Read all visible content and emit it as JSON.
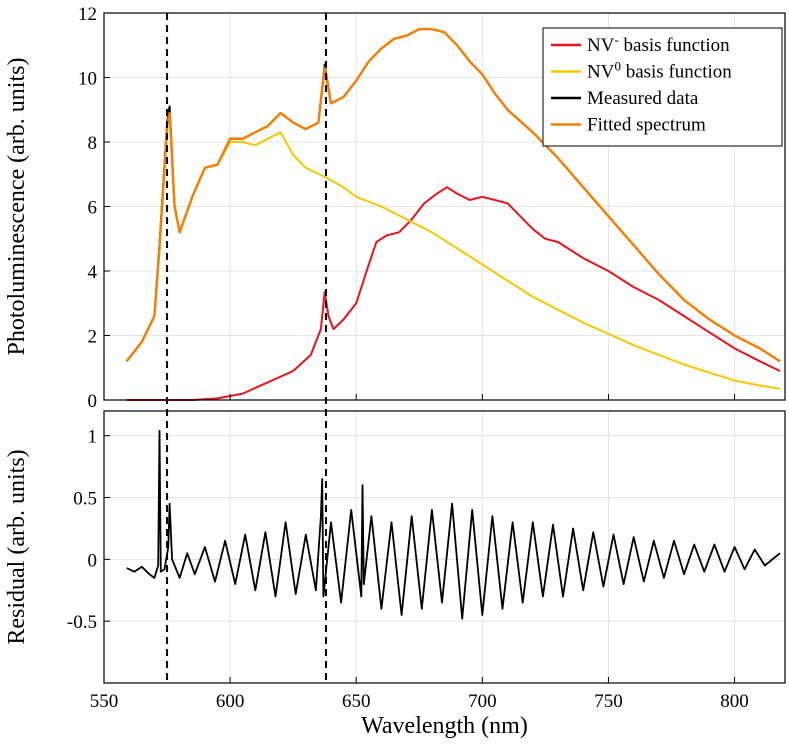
{
  "chart_data": [
    {
      "type": "line",
      "panel": "top",
      "xlabel": "",
      "ylabel": "Photoluminescence (arb. units)",
      "xlim": [
        550,
        820
      ],
      "ylim": [
        0,
        12
      ],
      "yticks": [
        0,
        2,
        4,
        6,
        8,
        10,
        12
      ],
      "grid": true,
      "legend_position": "top-right",
      "colors": {
        "nvm": "#e8141c",
        "nv0": "#f5c800",
        "measured": "#000000",
        "fitted": "#f77f00"
      },
      "legend": [
        {
          "key": "nvm",
          "base": "NV",
          "sup": "-",
          "rest": " basis function"
        },
        {
          "key": "nv0",
          "base": "NV",
          "sup": "0",
          "rest": " basis function"
        },
        {
          "key": "measured",
          "base": "Measured data",
          "sup": "",
          "rest": ""
        },
        {
          "key": "fitted",
          "base": "Fitted spectrum",
          "sup": "",
          "rest": ""
        }
      ],
      "series": [
        {
          "key": "nvm",
          "x": [
            559,
            565,
            575,
            585,
            595,
            605,
            615,
            625,
            632,
            636,
            637.5,
            639,
            641,
            645,
            650,
            655,
            658,
            662,
            667,
            672,
            677,
            682,
            686,
            690,
            695,
            700,
            705,
            710,
            715,
            720,
            725,
            730,
            740,
            750,
            760,
            770,
            780,
            790,
            800,
            810,
            818
          ],
          "y": [
            0.0,
            0.0,
            0.0,
            0.0,
            0.05,
            0.2,
            0.55,
            0.9,
            1.4,
            2.2,
            3.35,
            2.6,
            2.2,
            2.5,
            3.0,
            4.2,
            4.9,
            5.1,
            5.2,
            5.6,
            6.1,
            6.4,
            6.6,
            6.4,
            6.2,
            6.3,
            6.2,
            6.1,
            5.7,
            5.3,
            5.0,
            4.9,
            4.4,
            4.0,
            3.5,
            3.1,
            2.6,
            2.1,
            1.6,
            1.2,
            0.9
          ]
        },
        {
          "key": "nv0",
          "x": [
            559,
            565,
            570,
            572,
            575,
            576,
            578,
            580,
            585,
            590,
            595,
            600,
            605,
            610,
            615,
            620,
            625,
            630,
            638,
            645,
            650,
            660,
            670,
            680,
            690,
            700,
            710,
            720,
            730,
            740,
            750,
            760,
            770,
            780,
            790,
            800,
            810,
            818
          ],
          "y": [
            1.2,
            1.8,
            2.6,
            4.8,
            8.6,
            8.9,
            6.0,
            5.2,
            6.3,
            7.2,
            7.3,
            8.0,
            8.0,
            7.9,
            8.1,
            8.3,
            7.6,
            7.2,
            6.9,
            6.6,
            6.3,
            6.0,
            5.6,
            5.2,
            4.7,
            4.2,
            3.7,
            3.2,
            2.8,
            2.4,
            2.05,
            1.7,
            1.4,
            1.1,
            0.85,
            0.6,
            0.45,
            0.35
          ]
        },
        {
          "key": "measured",
          "x": [
            559,
            565,
            570,
            572,
            575,
            576,
            578,
            580,
            585,
            590,
            595,
            600,
            605,
            610,
            615,
            620,
            625,
            630,
            635,
            637.5,
            640,
            645,
            650,
            655,
            660,
            665,
            670,
            675,
            680,
            685,
            690,
            695,
            700,
            705,
            710,
            720,
            730,
            740,
            750,
            760,
            770,
            780,
            790,
            800,
            810,
            818
          ],
          "y": [
            1.2,
            1.8,
            2.6,
            4.8,
            8.6,
            9.1,
            6.0,
            5.2,
            6.3,
            7.2,
            7.3,
            8.1,
            8.1,
            8.3,
            8.5,
            8.9,
            8.6,
            8.4,
            8.6,
            10.4,
            9.2,
            9.4,
            9.9,
            10.5,
            10.9,
            11.2,
            11.3,
            11.5,
            11.5,
            11.4,
            11.0,
            10.5,
            10.1,
            9.5,
            9.0,
            8.3,
            7.5,
            6.6,
            5.7,
            4.8,
            3.9,
            3.1,
            2.5,
            2.0,
            1.6,
            1.2
          ]
        },
        {
          "key": "fitted",
          "x": [
            559,
            565,
            570,
            572,
            575,
            576,
            578,
            580,
            585,
            590,
            595,
            600,
            605,
            610,
            615,
            620,
            625,
            630,
            635,
            637.5,
            640,
            645,
            650,
            655,
            660,
            665,
            670,
            675,
            680,
            685,
            690,
            695,
            700,
            705,
            710,
            720,
            730,
            740,
            750,
            760,
            770,
            780,
            790,
            800,
            810,
            818
          ],
          "y": [
            1.2,
            1.8,
            2.6,
            4.7,
            8.5,
            8.9,
            6.0,
            5.2,
            6.3,
            7.2,
            7.3,
            8.1,
            8.1,
            8.3,
            8.5,
            8.9,
            8.6,
            8.4,
            8.6,
            10.3,
            9.2,
            9.4,
            9.9,
            10.5,
            10.9,
            11.2,
            11.3,
            11.5,
            11.5,
            11.4,
            11.0,
            10.5,
            10.1,
            9.5,
            9.0,
            8.3,
            7.5,
            6.6,
            5.7,
            4.8,
            3.9,
            3.1,
            2.5,
            2.0,
            1.6,
            1.2
          ]
        }
      ]
    },
    {
      "type": "line",
      "panel": "bottom",
      "xlabel": "Wavelength (nm)",
      "ylabel": "Residual (arb. units)",
      "xlim": [
        550,
        820
      ],
      "ylim": [
        -1,
        1.2
      ],
      "xticks": [
        550,
        600,
        650,
        700,
        750,
        800
      ],
      "yticks": [
        -0.5,
        0,
        0.5,
        1
      ],
      "ytick_labels": [
        "-0.5",
        "0",
        "0.5",
        "1"
      ],
      "grid": true,
      "series": [
        {
          "key": "residual",
          "x": [
            559,
            562,
            565,
            568,
            570,
            571.5,
            572,
            572.5,
            574,
            575.5,
            576,
            577,
            580,
            583,
            586,
            590,
            594,
            598,
            602,
            606,
            610,
            614,
            618,
            622,
            626,
            630,
            634,
            636,
            636.5,
            637,
            640,
            644,
            648,
            652,
            652.5,
            653,
            656,
            660,
            664,
            668,
            672,
            676,
            680,
            684,
            688,
            692,
            696,
            700,
            704,
            708,
            712,
            716,
            720,
            724,
            728,
            732,
            736,
            740,
            744,
            748,
            752,
            756,
            760,
            764,
            768,
            772,
            776,
            780,
            784,
            788,
            792,
            796,
            800,
            804,
            808,
            812,
            818
          ],
          "y": [
            -0.07,
            -0.1,
            -0.06,
            -0.12,
            -0.15,
            -0.05,
            1.04,
            -0.1,
            -0.08,
            0.1,
            0.45,
            0.0,
            -0.15,
            0.05,
            -0.12,
            0.1,
            -0.18,
            0.15,
            -0.2,
            0.2,
            -0.25,
            0.22,
            -0.3,
            0.3,
            -0.28,
            0.2,
            -0.25,
            0.35,
            0.65,
            -0.3,
            0.3,
            -0.35,
            0.4,
            -0.3,
            0.6,
            -0.2,
            0.35,
            -0.4,
            0.3,
            -0.45,
            0.35,
            -0.4,
            0.4,
            -0.35,
            0.45,
            -0.48,
            0.4,
            -0.45,
            0.35,
            -0.4,
            0.3,
            -0.35,
            0.3,
            -0.3,
            0.28,
            -0.3,
            0.25,
            -0.25,
            0.22,
            -0.22,
            0.2,
            -0.2,
            0.18,
            -0.18,
            0.15,
            -0.15,
            0.15,
            -0.12,
            0.12,
            -0.1,
            0.12,
            -0.1,
            0.1,
            -0.08,
            0.08,
            -0.05,
            0.05
          ]
        }
      ]
    }
  ],
  "markers": {
    "vertical_lines_nm": [
      575,
      638
    ],
    "style": "dashed"
  }
}
